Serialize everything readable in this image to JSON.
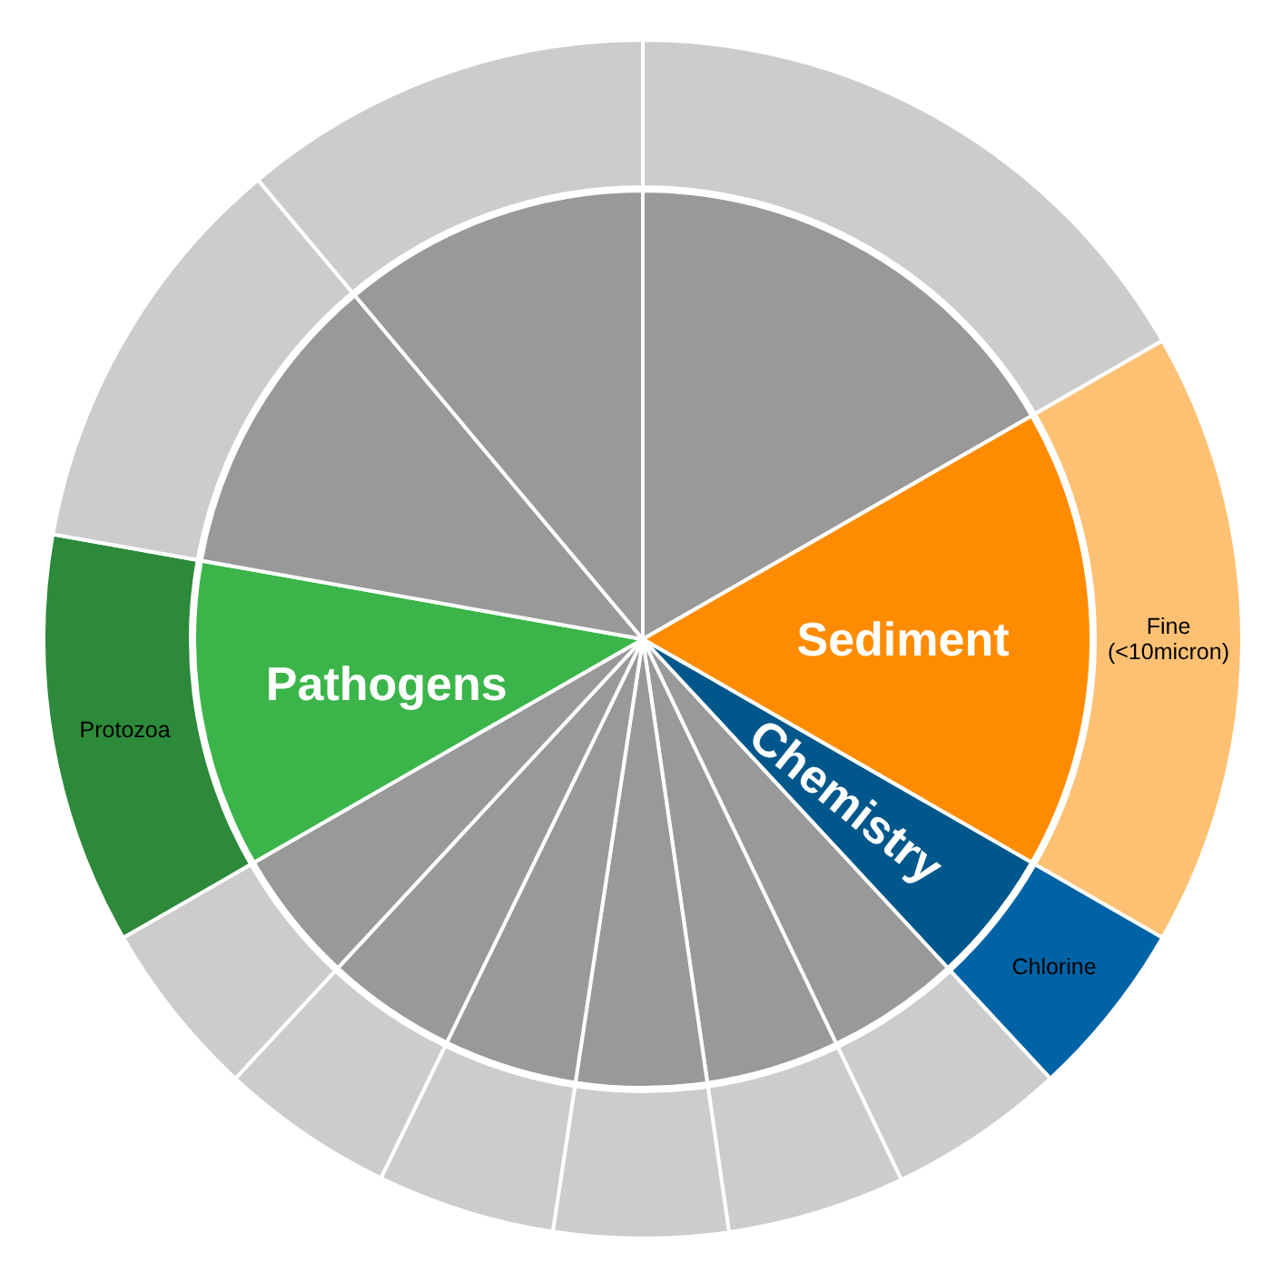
{
  "chart_data": {
    "type": "pie",
    "categories": [
      null,
      "Sediment",
      "Chemistry",
      null,
      null,
      null,
      null,
      null,
      null,
      "Pathogens",
      null,
      null
    ],
    "series": [
      {
        "values": [
          16.7,
          16.6,
          4.8,
          4.8,
          4.8,
          4.7,
          4.8,
          4.7,
          4.8,
          11.1,
          11.1,
          11.1
        ],
        "colors": [
          "#999999",
          "#ff8c00",
          "#00578c",
          "#999999",
          "#999999",
          "#999999",
          "#999999",
          "#999999",
          "#999999",
          "#3bb54a",
          "#999999",
          "#999999"
        ]
      },
      {
        "values": [
          16.7,
          16.6,
          4.8,
          4.8,
          4.8,
          4.7,
          4.8,
          4.7,
          4.8,
          11.1,
          11.1,
          11.1
        ],
        "value_labels": [
          null,
          "Fine (<10micron)",
          "Chlorine",
          null,
          null,
          null,
          null,
          null,
          null,
          "Protozoa",
          null,
          null
        ],
        "colors": [
          "#cccccc",
          "#fec174",
          "#0063a5",
          "#cccccc",
          "#cccccc",
          "#cccccc",
          "#cccccc",
          "#cccccc",
          "#cccccc",
          "#2c8a3a",
          "#cccccc",
          "#cccccc"
        ]
      }
    ]
  }
}
